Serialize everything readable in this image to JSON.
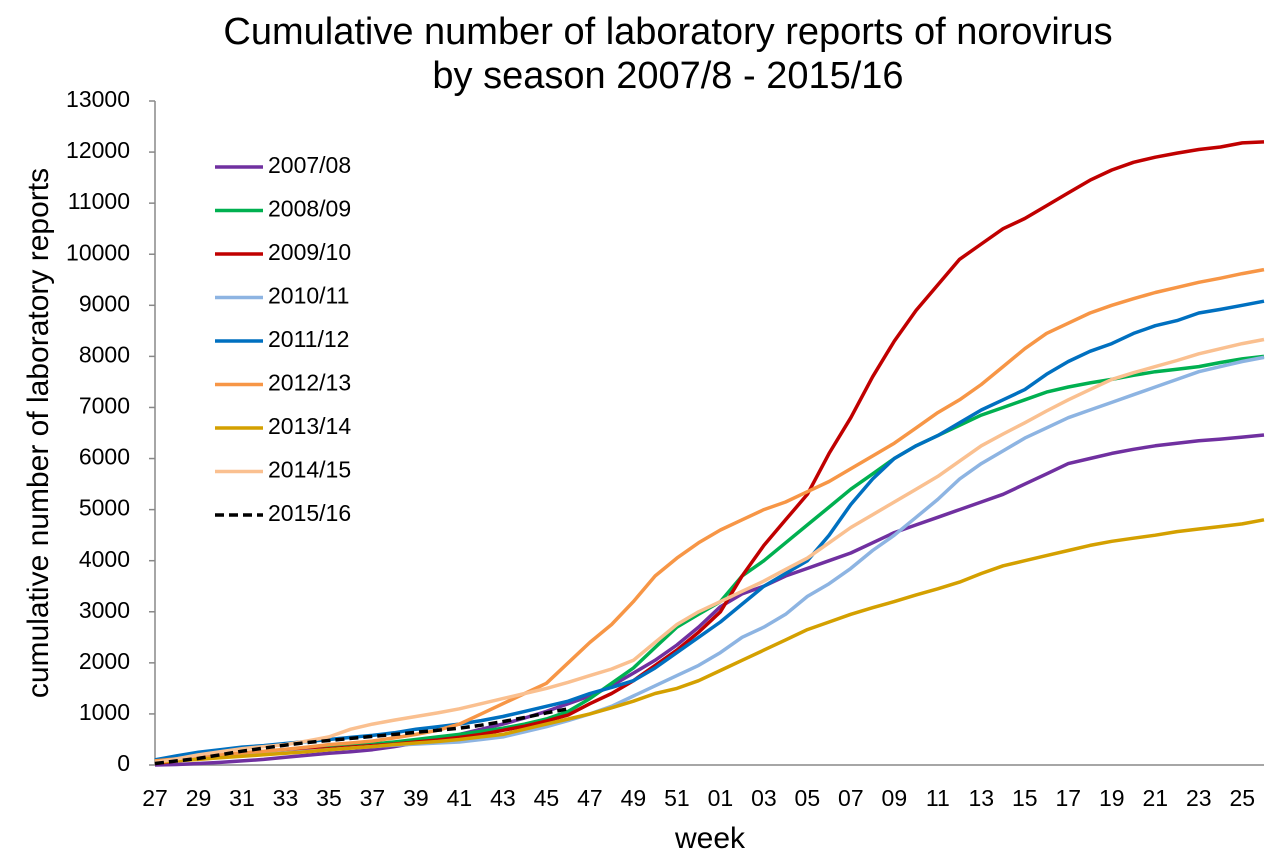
{
  "chart_data": {
    "type": "line",
    "title": "Cumulative number of laboratory reports of norovirus",
    "subtitle": "by season 2007/8 - 2015/16",
    "x_label": "week",
    "y_label": "cumulative number of laboratory reports",
    "categories": [
      "27",
      null,
      "29",
      null,
      "31",
      null,
      "33",
      null,
      "35",
      null,
      "37",
      null,
      "39",
      null,
      "41",
      null,
      "43",
      null,
      "45",
      null,
      "47",
      null,
      "49",
      null,
      "51",
      null,
      "01",
      null,
      "03",
      null,
      "05",
      null,
      "07",
      null,
      "09",
      null,
      "11",
      null,
      "13",
      null,
      "15",
      null,
      "17",
      null,
      "19",
      null,
      "21",
      null,
      "23",
      null,
      "25",
      null
    ],
    "ylim": [
      0,
      13000
    ],
    "yticks": [
      0,
      1000,
      2000,
      3000,
      4000,
      5000,
      6000,
      7000,
      8000,
      9000,
      10000,
      11000,
      12000,
      13000
    ],
    "grid": false,
    "legend": "upper left",
    "series": [
      {
        "name": "2007/08",
        "color": "#7030a0",
        "values": [
          0,
          10,
          30,
          50,
          80,
          110,
          150,
          190,
          230,
          260,
          300,
          360,
          430,
          510,
          600,
          700,
          800,
          920,
          1050,
          1200,
          1350,
          1550,
          1800,
          2050,
          2350,
          2700,
          3100,
          3350,
          3500,
          3700,
          3850,
          4000,
          4150,
          4350,
          4550,
          4700,
          4850,
          5000,
          5150,
          5300,
          5500,
          5700,
          5900,
          6000,
          6100,
          6180,
          6250,
          6300,
          6350,
          6380,
          6420,
          6460
        ]
      },
      {
        "name": "2008/09",
        "color": "#00b050",
        "values": [
          100,
          130,
          160,
          190,
          220,
          250,
          280,
          310,
          350,
          380,
          410,
          450,
          500,
          550,
          600,
          660,
          720,
          800,
          900,
          1050,
          1300,
          1600,
          1900,
          2300,
          2700,
          2950,
          3200,
          3700,
          4000,
          4350,
          4700,
          5050,
          5400,
          5700,
          6000,
          6250,
          6450,
          6650,
          6850,
          7000,
          7150,
          7300,
          7400,
          7480,
          7550,
          7630,
          7700,
          7750,
          7800,
          7880,
          7950,
          8000
        ]
      },
      {
        "name": "2009/10",
        "color": "#c00000",
        "values": [
          30,
          80,
          130,
          170,
          210,
          240,
          270,
          300,
          320,
          350,
          380,
          410,
          450,
          490,
          540,
          600,
          680,
          760,
          860,
          980,
          1200,
          1400,
          1650,
          1950,
          2250,
          2600,
          3000,
          3700,
          4300,
          4800,
          5300,
          6100,
          6800,
          7600,
          8300,
          8900,
          9400,
          9900,
          10200,
          10500,
          10700,
          10950,
          11200,
          11450,
          11650,
          11800,
          11900,
          11980,
          12050,
          12100,
          12180,
          12200
        ]
      },
      {
        "name": "2010/11",
        "color": "#8db4e2",
        "values": [
          50,
          90,
          120,
          150,
          180,
          210,
          240,
          270,
          300,
          330,
          360,
          390,
          410,
          430,
          450,
          500,
          550,
          650,
          750,
          870,
          1000,
          1150,
          1350,
          1550,
          1750,
          1950,
          2200,
          2500,
          2700,
          2950,
          3300,
          3550,
          3850,
          4200,
          4500,
          4850,
          5200,
          5600,
          5900,
          6150,
          6400,
          6600,
          6800,
          6950,
          7100,
          7250,
          7400,
          7550,
          7700,
          7800,
          7900,
          7980
        ]
      },
      {
        "name": "2011/12",
        "color": "#0070c0",
        "values": [
          100,
          180,
          250,
          300,
          350,
          380,
          420,
          460,
          500,
          540,
          580,
          630,
          700,
          750,
          800,
          870,
          950,
          1050,
          1150,
          1250,
          1400,
          1520,
          1650,
          1900,
          2200,
          2500,
          2800,
          3150,
          3500,
          3750,
          4000,
          4500,
          5100,
          5600,
          6000,
          6250,
          6450,
          6700,
          6950,
          7150,
          7350,
          7650,
          7900,
          8100,
          8250,
          8450,
          8600,
          8700,
          8850,
          8920,
          9000,
          9080
        ]
      },
      {
        "name": "2012/13",
        "color": "#f79646",
        "values": [
          80,
          120,
          160,
          200,
          240,
          270,
          310,
          350,
          400,
          430,
          470,
          530,
          600,
          680,
          800,
          1000,
          1200,
          1400,
          1600,
          2000,
          2400,
          2750,
          3200,
          3700,
          4050,
          4350,
          4600,
          4800,
          5000,
          5150,
          5350,
          5550,
          5800,
          6050,
          6300,
          6600,
          6900,
          7150,
          7450,
          7800,
          8150,
          8450,
          8650,
          8850,
          9000,
          9130,
          9250,
          9350,
          9450,
          9530,
          9620,
          9700
        ]
      },
      {
        "name": "2013/14",
        "color": "#d4a000",
        "values": [
          50,
          80,
          110,
          140,
          170,
          200,
          230,
          260,
          300,
          330,
          360,
          400,
          430,
          460,
          500,
          550,
          600,
          700,
          800,
          900,
          1000,
          1120,
          1250,
          1400,
          1500,
          1650,
          1850,
          2050,
          2250,
          2450,
          2650,
          2800,
          2950,
          3080,
          3200,
          3330,
          3450,
          3580,
          3750,
          3900,
          4000,
          4100,
          4200,
          4300,
          4380,
          4440,
          4500,
          4570,
          4620,
          4670,
          4720,
          4800
        ]
      },
      {
        "name": "2014/15",
        "color": "#fac090",
        "values": [
          50,
          120,
          200,
          260,
          320,
          360,
          400,
          470,
          550,
          700,
          800,
          880,
          950,
          1020,
          1100,
          1200,
          1300,
          1400,
          1500,
          1620,
          1750,
          1880,
          2050,
          2400,
          2750,
          3000,
          3200,
          3400,
          3600,
          3830,
          4050,
          4350,
          4650,
          4900,
          5150,
          5400,
          5650,
          5950,
          6250,
          6480,
          6700,
          6930,
          7150,
          7350,
          7550,
          7680,
          7800,
          7920,
          8050,
          8150,
          8250,
          8330
        ]
      },
      {
        "name": "2015/16",
        "color": "#000000",
        "dashed": true,
        "values": [
          30,
          80,
          130,
          200,
          270,
          330,
          390,
          440,
          480,
          520,
          560,
          600,
          640,
          680,
          720,
          780,
          850,
          930,
          1020,
          1100,
          null,
          null,
          null,
          null,
          null,
          null,
          null,
          null,
          null,
          null,
          null,
          null,
          null,
          null,
          null,
          null,
          null,
          null,
          null,
          null,
          null,
          null,
          null,
          null,
          null,
          null,
          null,
          null,
          null,
          null,
          null,
          null
        ]
      }
    ]
  }
}
